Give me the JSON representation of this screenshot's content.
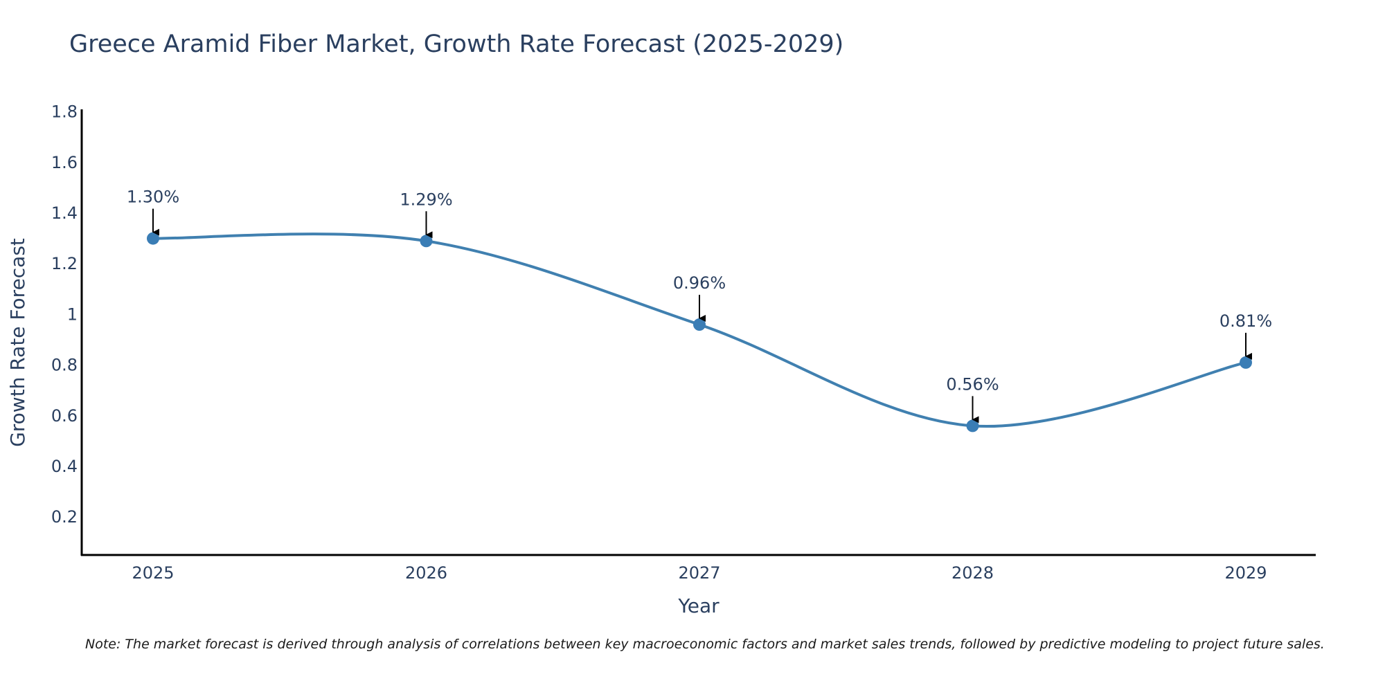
{
  "chart_data": {
    "type": "line",
    "title": "Greece Aramid Fiber Market, Growth Rate Forecast (2025-2029)",
    "xlabel": "Year",
    "ylabel": "Growth Rate Forecast",
    "categories": [
      "2025",
      "2026",
      "2027",
      "2028",
      "2029"
    ],
    "values": [
      1.3,
      1.29,
      0.96,
      0.56,
      0.81
    ],
    "data_labels": [
      "1.30%",
      "1.29%",
      "0.96%",
      "0.56%",
      "0.81%"
    ],
    "yticks": [
      0.2,
      0.4,
      0.6,
      0.8,
      1,
      1.2,
      1.4,
      1.6,
      1.8
    ],
    "ytick_labels": [
      "0.2",
      "0.4",
      "0.6",
      "0.8",
      "1",
      "1.2",
      "1.4",
      "1.6",
      "1.8"
    ],
    "ylim": [
      0.05,
      1.81
    ],
    "grid": false,
    "line_shape": "spline",
    "colors": {
      "line": "#4080b0",
      "marker": "#3a7db5",
      "axis": "#000000",
      "text": "#2a3f5f",
      "annotation_arrow": "#000000"
    }
  },
  "note": "Note: The market forecast is derived through analysis of correlations between key macroeconomic factors and market sales trends, followed by predictive modeling to project future sales."
}
